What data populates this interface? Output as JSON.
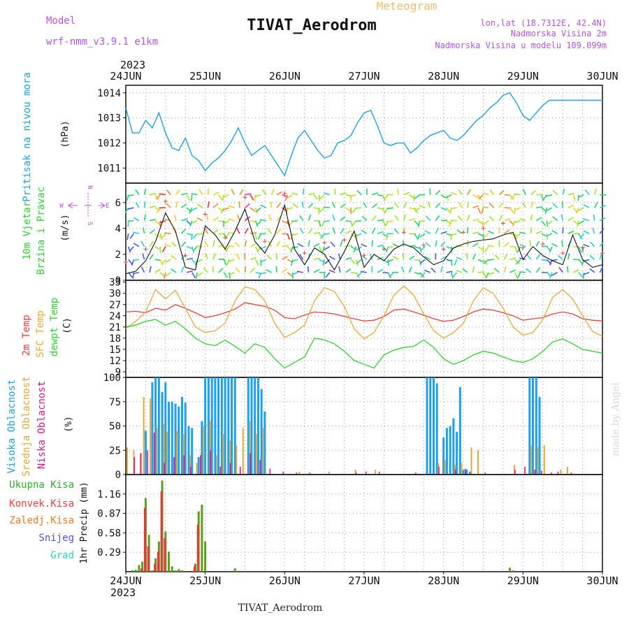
{
  "header": {
    "model_label": "Model",
    "model_name": "wrf-nmm_v3.9.1 e1km",
    "station_title": "TIVAT_Aerodrom",
    "meteogram_label": "Meteogram",
    "lonlat": "lon,lat (18.7312E, 42.4N)",
    "elevation": "Nadmorska Visina 2m",
    "model_elevation": "Nadmorska Visina u modelu 109.099m",
    "footer_station": "TIVAT_Aerodrom",
    "made_by": "made by Angel"
  },
  "time_axis": {
    "year": "2023",
    "ticks": [
      "24JUN",
      "25JUN",
      "26JUN",
      "27JUN",
      "28JUN",
      "29JUN",
      "30JUN"
    ]
  },
  "colors": {
    "pressure": "#1ea0e6",
    "temp2m": "#e8413c",
    "sfc": "#e6a93c",
    "dewpt": "#2fd12f",
    "high": "#1e9ff0",
    "mid": "#e0a83a",
    "low": "#e0148c",
    "precip_total": "#5c9e1e",
    "precip_conv": "#e03c3c",
    "precip_frz": "#f07828",
    "snow": "#5050e6",
    "graupel": "#2ccfc0",
    "label_purple": "#b455dc",
    "title_gold": "#e8c070"
  },
  "labels": {
    "pressure": {
      "left": "Pritisak na nivou mora",
      "unit": "(hPa)"
    },
    "wind": {
      "line1": "10m Vjetar",
      "line2": "Brzina i Pravac",
      "unit": "(m/s)",
      "compass_n": "N",
      "compass_s": "S",
      "compass_w": "W",
      "compass_e": "E"
    },
    "temp": {
      "t2m": "2m Temp",
      "sfc": "SFC Temp",
      "dewpt": "dewpt Temp",
      "unit": "(C)"
    },
    "cloud": {
      "high": "Visoka Oblacnost",
      "mid": "Srednja Oblacnost",
      "low": "Niska Oblacnost",
      "unit": "(%)"
    },
    "precip": {
      "total": "Ukupna Kisa",
      "conv": "Konvek.Kisa",
      "frz": "Zaledj.Kisa",
      "snow": "Snijeg",
      "graupel": "Grad",
      "unit": "1hr Precip (mm)"
    }
  },
  "chart_data": [
    {
      "type": "line",
      "panel": "pressure",
      "ylim": [
        1010.4,
        1014.3
      ],
      "yticks": [
        "1011",
        "1012",
        "1013",
        "1014"
      ],
      "x_hours": [
        0,
        2,
        4,
        6,
        8,
        10,
        12,
        14,
        16,
        18,
        20,
        22,
        24,
        26,
        28,
        30,
        32,
        34,
        36,
        38,
        40,
        42,
        44,
        46,
        48,
        50,
        52,
        54,
        56,
        58,
        60,
        62,
        64,
        66,
        68,
        70,
        72,
        74,
        76,
        78,
        80,
        82,
        84,
        86,
        88,
        90,
        92,
        94,
        96,
        98,
        100,
        102,
        104,
        106,
        108,
        110,
        112,
        114,
        116,
        118,
        120,
        122,
        124,
        126,
        128,
        130,
        132,
        134,
        136,
        138,
        140,
        142,
        144
      ],
      "series": [
        {
          "values": [
            1013.4,
            1012.4,
            1012.4,
            1012.9,
            1012.6,
            1013.2,
            1012.4,
            1011.8,
            1011.7,
            1012.2,
            1011.5,
            1011.3,
            1010.9,
            1011.2,
            1011.4,
            1011.7,
            1012.1,
            1012.6,
            1012.0,
            1011.5,
            1011.7,
            1011.9,
            1011.5,
            1011.1,
            1010.7,
            1011.5,
            1012.2,
            1012.5,
            1012.1,
            1011.7,
            1011.4,
            1011.5,
            1012.0,
            1012.1,
            1012.3,
            1012.8,
            1013.2,
            1013.3,
            1012.7,
            1012.0,
            1011.9,
            1012.0,
            1012.0,
            1011.6,
            1011.8,
            1012.1,
            1012.3,
            1012.4,
            1012.5,
            1012.2,
            1012.1,
            1012.3,
            1012.6,
            1012.9,
            1013.1,
            1013.4,
            1013.6,
            1013.9,
            1014.0,
            1013.6,
            1013.1,
            1012.9,
            1013.2,
            1013.5,
            1013.7,
            1013.7,
            1013.7,
            1013.7,
            1013.7,
            1013.7,
            1013.7,
            1013.7,
            1013.7
          ]
        }
      ]
    },
    {
      "type": "line",
      "panel": "wind",
      "ylim": [
        0,
        7.5
      ],
      "yticks": [
        "0",
        "2",
        "4",
        "6"
      ],
      "x_hours": [
        0,
        3,
        6,
        9,
        12,
        15,
        18,
        21,
        24,
        27,
        30,
        33,
        36,
        39,
        42,
        45,
        48,
        51,
        54,
        57,
        60,
        63,
        66,
        69,
        72,
        75,
        78,
        81,
        84,
        87,
        90,
        93,
        96,
        99,
        102,
        105,
        108,
        111,
        114,
        117,
        120,
        123,
        126,
        129,
        132,
        135,
        138,
        141,
        144
      ],
      "series": [
        {
          "name": "",
          "values": [
            0.5,
            0.7,
            1.5,
            3.0,
            5.2,
            3.8,
            1.0,
            0.8,
            4.2,
            3.5,
            2.4,
            3.8,
            5.5,
            3.0,
            2.1,
            3.5,
            5.8,
            2.4,
            1.2,
            2.5,
            2.0,
            0.8,
            2.2,
            3.8,
            1.0,
            2.0,
            1.5,
            2.4,
            2.8,
            2.5,
            1.8,
            1.2,
            1.5,
            2.5,
            2.8,
            3.0,
            3.1,
            3.2,
            3.5,
            3.7,
            1.6,
            2.6,
            1.9,
            1.5,
            1.2,
            3.5,
            1.6,
            1.0,
            1.2
          ]
        }
      ]
    },
    {
      "type": "line",
      "panel": "temperature",
      "ylim": [
        7.5,
        33.5
      ],
      "yticks": [
        "9",
        "12",
        "15",
        "18",
        "21",
        "24",
        "27",
        "30",
        "33"
      ],
      "x_hours": [
        0,
        3,
        6,
        9,
        12,
        15,
        18,
        21,
        24,
        27,
        30,
        33,
        36,
        39,
        42,
        45,
        48,
        51,
        54,
        57,
        60,
        63,
        66,
        69,
        72,
        75,
        78,
        81,
        84,
        87,
        90,
        93,
        96,
        99,
        102,
        105,
        108,
        111,
        114,
        117,
        120,
        123,
        126,
        129,
        132,
        135,
        138,
        141,
        144
      ],
      "series": [
        {
          "name": "2m Temp",
          "values": [
            25.0,
            25.2,
            24.8,
            26.0,
            25.5,
            27.0,
            26.0,
            24.8,
            23.5,
            24.0,
            24.8,
            25.8,
            27.5,
            27.0,
            26.5,
            25.5,
            23.5,
            23.2,
            24.2,
            25.0,
            24.8,
            24.5,
            23.8,
            23.2,
            22.6,
            22.8,
            23.8,
            25.5,
            25.8,
            25.0,
            24.2,
            23.2,
            22.5,
            22.8,
            23.8,
            25.0,
            25.8,
            25.5,
            24.8,
            24.0,
            22.8,
            23.2,
            23.5,
            24.5,
            25.0,
            24.5,
            23.2,
            22.8,
            22.6
          ]
        },
        {
          "name": "SFC Temp",
          "values": [
            20.5,
            22.5,
            25.0,
            31.0,
            28.5,
            30.8,
            26.0,
            21.0,
            19.5,
            20.0,
            22.0,
            28.0,
            31.8,
            31.0,
            28.0,
            22.0,
            18.2,
            19.5,
            21.5,
            28.0,
            31.5,
            30.5,
            26.5,
            20.5,
            17.8,
            19.5,
            24.0,
            29.5,
            32.0,
            29.5,
            24.5,
            20.0,
            18.0,
            19.5,
            22.0,
            28.0,
            31.5,
            30.0,
            26.0,
            21.0,
            18.8,
            19.5,
            23.0,
            29.0,
            31.0,
            28.5,
            24.0,
            19.8,
            18.5
          ]
        },
        {
          "name": "dewpt Temp",
          "values": [
            21.0,
            21.5,
            22.5,
            23.0,
            21.5,
            22.5,
            20.5,
            18.0,
            16.5,
            16.0,
            17.5,
            15.8,
            14.0,
            16.5,
            15.5,
            12.5,
            10.0,
            11.5,
            13.0,
            18.0,
            17.5,
            16.5,
            14.5,
            12.0,
            11.0,
            10.0,
            13.5,
            14.8,
            15.5,
            15.8,
            17.5,
            15.5,
            12.5,
            11.0,
            12.0,
            13.5,
            14.5,
            14.0,
            13.0,
            12.0,
            11.5,
            12.5,
            14.5,
            17.0,
            17.8,
            16.5,
            15.0,
            14.5,
            14.0
          ]
        }
      ]
    },
    {
      "type": "bar",
      "panel": "cloud",
      "ylim": [
        0,
        100
      ],
      "yticks": [
        "0",
        "25",
        "50",
        "75",
        "100"
      ],
      "series": [
        {
          "name": "Visoka Oblacnost",
          "x_hours": [
            6,
            8,
            9,
            10,
            11,
            12,
            13,
            14,
            15,
            16,
            17,
            18,
            19,
            20,
            22,
            23,
            24,
            25,
            26,
            27,
            28,
            29,
            30,
            31,
            32,
            33,
            37,
            38,
            39,
            40,
            41,
            42,
            91,
            92,
            93,
            94,
            96,
            97,
            98,
            99,
            100,
            101,
            102,
            103,
            104,
            122,
            123,
            124,
            125
          ],
          "values": [
            45,
            95,
            100,
            100,
            85,
            95,
            75,
            75,
            73,
            70,
            80,
            74,
            50,
            48,
            18,
            55,
            100,
            100,
            100,
            100,
            100,
            100,
            100,
            100,
            100,
            100,
            100,
            100,
            100,
            100,
            88,
            65,
            100,
            100,
            100,
            94,
            38,
            48,
            50,
            58,
            44,
            90,
            5,
            5,
            3,
            100,
            100,
            100,
            80
          ]
        },
        {
          "name": "Srednja Oblacnost",
          "x_hours": [
            0,
            2,
            4,
            5,
            7,
            9,
            11,
            12,
            15,
            17,
            19,
            21,
            23,
            25,
            27,
            29,
            31,
            33,
            35,
            37,
            39,
            41,
            52,
            61,
            69,
            75,
            94,
            96,
            99,
            101,
            104,
            106,
            117,
            122,
            124,
            126,
            131,
            133
          ],
          "values": [
            28,
            25,
            22,
            80,
            78,
            48,
            52,
            44,
            45,
            42,
            20,
            12,
            50,
            55,
            20,
            42,
            35,
            30,
            48,
            55,
            42,
            48,
            3,
            3,
            5,
            5,
            12,
            15,
            10,
            12,
            28,
            25,
            10,
            30,
            28,
            30,
            5,
            8
          ]
        },
        {
          "name": "Niska Oblacnost",
          "x_hours": [
            3,
            5,
            7,
            9,
            12,
            15,
            18,
            20,
            23,
            26,
            29,
            32,
            35,
            38,
            41,
            44,
            48,
            52,
            56,
            70,
            73,
            77,
            88,
            95,
            100,
            103,
            109,
            118,
            121,
            124,
            126,
            129,
            131,
            135
          ],
          "values": [
            18,
            22,
            25,
            43,
            12,
            18,
            20,
            8,
            20,
            25,
            8,
            12,
            8,
            22,
            15,
            6,
            3,
            2,
            2,
            2,
            3,
            3,
            2,
            8,
            5,
            6,
            2,
            5,
            8,
            5,
            4,
            2,
            3,
            2
          ]
        }
      ]
    },
    {
      "type": "bar",
      "panel": "precipitation",
      "ylim": [
        0,
        1.45
      ],
      "yticks": [
        "0.29",
        "0.58",
        "0.87",
        "1.16"
      ],
      "series": [
        {
          "name": "Ukupna Kisa",
          "x_hours": [
            2,
            3,
            4,
            5,
            6,
            7,
            8,
            9,
            10,
            11,
            12,
            13,
            14,
            15,
            16,
            17,
            21,
            22,
            23,
            24,
            33,
            116,
            117
          ],
          "values": [
            0.02,
            0.03,
            0.1,
            0.15,
            1.1,
            0.55,
            0.02,
            0.2,
            0.45,
            1.36,
            0.6,
            0.3,
            0.08,
            0.02,
            0.04,
            0.02,
            0.12,
            0.9,
            1.0,
            0.45,
            0.05,
            0.06,
            0.02
          ]
        },
        {
          "name": "Konvek.Kisa",
          "x_hours": [
            5,
            6,
            7,
            9,
            10,
            11,
            12,
            21,
            22
          ],
          "values": [
            0.05,
            0.95,
            0.38,
            0.12,
            0.3,
            1.2,
            0.5,
            0.08,
            0.7
          ]
        }
      ]
    }
  ]
}
